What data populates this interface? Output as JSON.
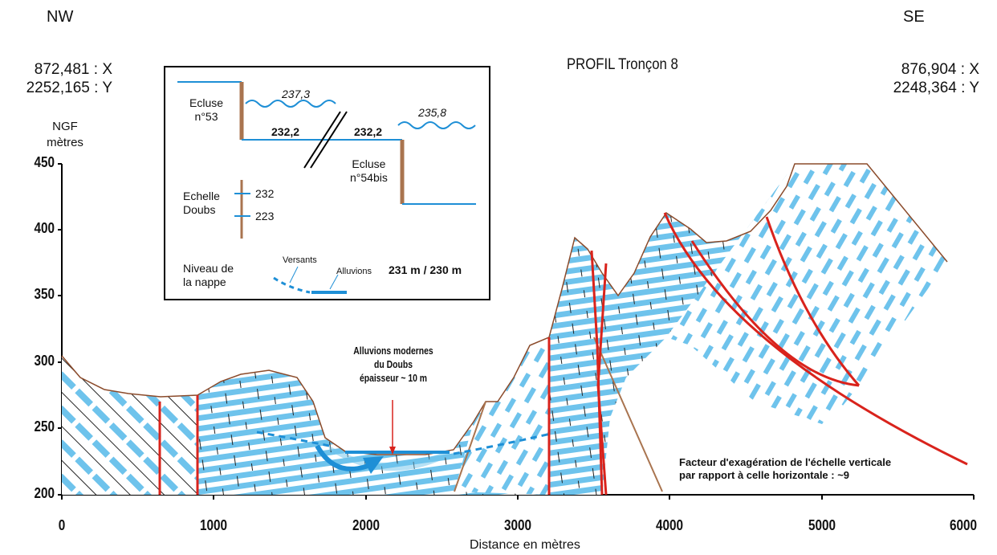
{
  "corners": {
    "left": "NW",
    "right": "SE"
  },
  "title": "PROFIL Tronçon 8",
  "coords": {
    "left_x": "872,481 : X",
    "left_y": "2252,165 : Y",
    "right_x": "876,904 : X",
    "right_y": "2248,364 : Y"
  },
  "yaxis": {
    "label1": "NGF",
    "label2": "mètres",
    "ticks": [
      "450",
      "400",
      "350",
      "300",
      "250",
      "200"
    ]
  },
  "xaxis": {
    "label": "Distance en mètres",
    "ticks": [
      "0",
      "1000",
      "2000",
      "3000",
      "4000",
      "5000",
      "6000"
    ]
  },
  "annotation": {
    "line1": "Alluvions modernes",
    "line2": "du Doubs",
    "line3": "épaisseur ~ 10 m"
  },
  "scale_note": {
    "line1": "Facteur d'exagération de l'échelle verticale",
    "line2": "par rapport à celle horizontale : ~9"
  },
  "legend": {
    "ecluse1": "Ecluse",
    "ecluse1_num": "n°53",
    "level_upper": "237,3",
    "level_lower": "235,8",
    "level_mid1": "232,2",
    "level_mid2": "232,2",
    "ecluse2": "Ecluse",
    "ecluse2_num": "n°54bis",
    "echelle1": "Echelle",
    "echelle2": "Doubs",
    "echelle_v1": "232",
    "echelle_v2": "223",
    "nappe1": "Niveau de",
    "nappe2": "la nappe",
    "versants": "Versants",
    "alluvions": "Alluvions",
    "nappe_value": "231 m / 230 m"
  },
  "colors": {
    "stone": "#6ec3ec",
    "fault": "#d9231c",
    "water": "#1e8fd6",
    "surface": "#8b4b2b",
    "bank": "#a9744f"
  }
}
